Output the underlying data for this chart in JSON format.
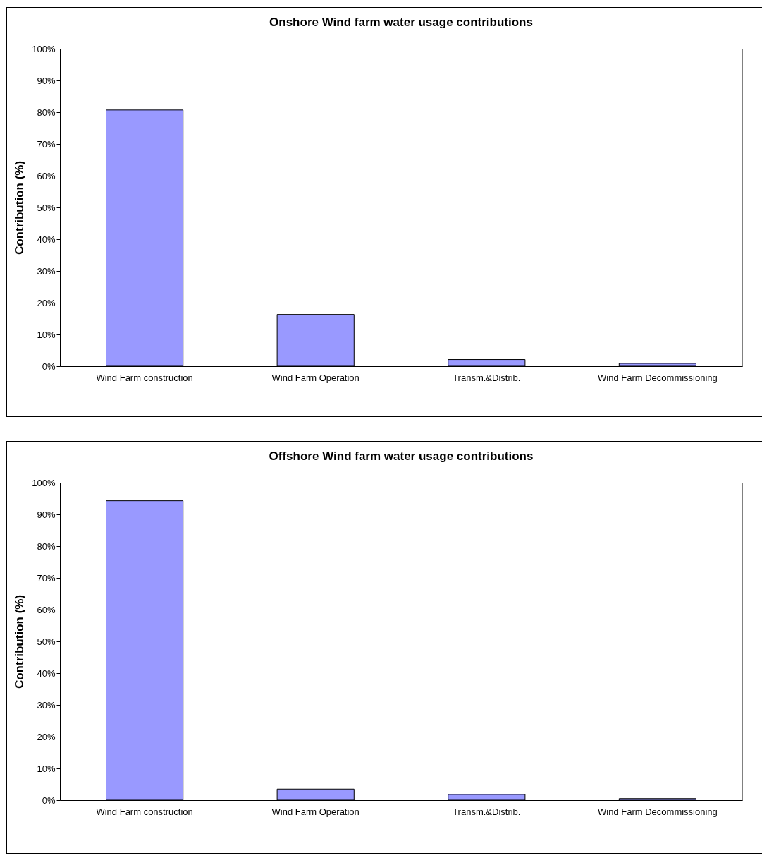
{
  "chart_data": [
    {
      "type": "bar",
      "title": "Onshore Wind farm water usage contributions",
      "ylabel": "Contribution (%)",
      "categories": [
        "Wind Farm construction",
        "Wind Farm Operation",
        "Transm.&Distrib.",
        "Wind Farm Decommissioning"
      ],
      "values": [
        80.7,
        16.3,
        2.1,
        0.9
      ],
      "color": "#9999ff",
      "ylim": [
        0,
        100
      ],
      "yticks": [
        {
          "value": 0,
          "label": "0%"
        },
        {
          "value": 10,
          "label": "10%"
        },
        {
          "value": 20,
          "label": "20%"
        },
        {
          "value": 30,
          "label": "30%"
        },
        {
          "value": 40,
          "label": "40%"
        },
        {
          "value": 50,
          "label": "50%"
        },
        {
          "value": 60,
          "label": "60%"
        },
        {
          "value": 70,
          "label": "70%"
        },
        {
          "value": 80,
          "label": "80%"
        },
        {
          "value": 90,
          "label": "90%"
        },
        {
          "value": 100,
          "label": "100%"
        }
      ],
      "grid": false
    },
    {
      "type": "bar",
      "title": "Offshore Wind farm water usage contributions",
      "ylabel": "Contribution (%)",
      "categories": [
        "Wind Farm construction",
        "Wind Farm Operation",
        "Transm.&Distrib.",
        "Wind Farm Decommissioning"
      ],
      "values": [
        94.3,
        3.5,
        1.8,
        0.5
      ],
      "color": "#9999ff",
      "ylim": [
        0,
        100
      ],
      "yticks": [
        {
          "value": 0,
          "label": "0%"
        },
        {
          "value": 10,
          "label": "10%"
        },
        {
          "value": 20,
          "label": "20%"
        },
        {
          "value": 30,
          "label": "30%"
        },
        {
          "value": 40,
          "label": "40%"
        },
        {
          "value": 50,
          "label": "50%"
        },
        {
          "value": 60,
          "label": "60%"
        },
        {
          "value": 70,
          "label": "70%"
        },
        {
          "value": 80,
          "label": "80%"
        },
        {
          "value": 90,
          "label": "90%"
        },
        {
          "value": 100,
          "label": "100%"
        }
      ],
      "grid": false
    }
  ]
}
